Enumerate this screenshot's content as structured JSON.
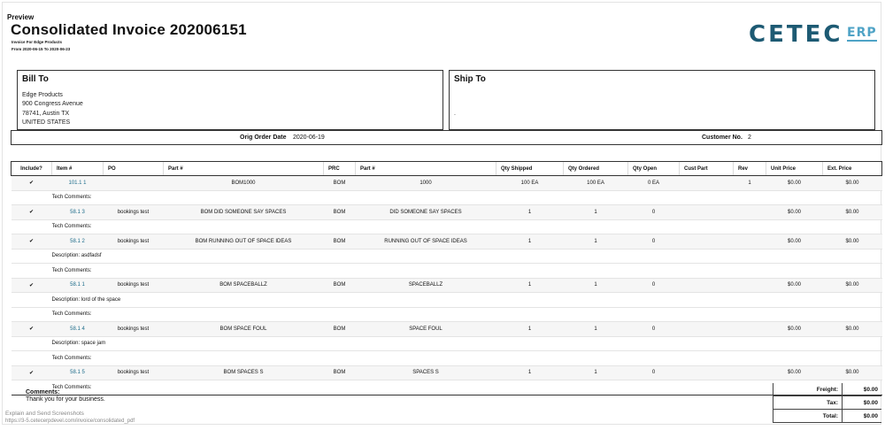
{
  "preview_label": "Preview",
  "title": "Consolidated Invoice 202006151",
  "subtitle": "Invoice For Edge Products",
  "date_range": "From 2020-06-15 To 2020-06-23",
  "logo": {
    "main": "CETEC",
    "suffix": "ERP",
    "main_color": "#1d5a73",
    "suffix_color": "#4fa3c6"
  },
  "bill_to": {
    "heading": "Bill To",
    "lines": [
      "Edge Products",
      "900 Congress Avenue",
      "78741, Austin TX",
      "UNITED STATES"
    ]
  },
  "ship_to": {
    "heading": "Ship To",
    "line": "."
  },
  "order_bar": {
    "orig_order_date_label": "Orig Order Date",
    "orig_order_date": "2020-06-19",
    "customer_no_label": "Customer No.",
    "customer_no": "2"
  },
  "columns": [
    "Include?",
    "Item #",
    "PO",
    "Part #",
    "PRC",
    "Part #",
    "Qty Shipped",
    "Qty Ordered",
    "Qty Open",
    "Cust Part",
    "Rev",
    "Unit Price",
    "Ext. Price"
  ],
  "rows": [
    {
      "kind": "item",
      "check": "✔",
      "item": "101.1 1",
      "po": "",
      "part": "BOM1000",
      "prc": "BOM",
      "part2": "1000",
      "shipped": "100 EA",
      "ordered": "100 EA",
      "open": "0 EA",
      "cust_part": "",
      "rev": "1",
      "unit": "$0.00",
      "ext": "$0.00"
    },
    {
      "kind": "note",
      "text": "Tech Comments:"
    },
    {
      "kind": "item",
      "check": "✔",
      "item": "58.1 3",
      "po": "bookings test",
      "part": "BOM DID SOMEONE SAY SPACES",
      "prc": "BOM",
      "part2": "DID SOMEONE SAY SPACES",
      "shipped": "1",
      "ordered": "1",
      "open": "0",
      "cust_part": "",
      "rev": "",
      "unit": "$0.00",
      "ext": "$0.00"
    },
    {
      "kind": "note",
      "text": "Tech Comments:"
    },
    {
      "kind": "item",
      "check": "✔",
      "item": "58.1 2",
      "po": "bookings test",
      "part": "BOM RUNNING OUT OF SPACE IDEAS",
      "prc": "BOM",
      "part2": "RUNNING OUT OF SPACE IDEAS",
      "shipped": "1",
      "ordered": "1",
      "open": "0",
      "cust_part": "",
      "rev": "",
      "unit": "$0.00",
      "ext": "$0.00"
    },
    {
      "kind": "note",
      "text": "Description: asdfadsf"
    },
    {
      "kind": "note",
      "text": "Tech Comments:"
    },
    {
      "kind": "item",
      "check": "✔",
      "item": "58.1 1",
      "po": "bookings test",
      "part": "BOM SPACEBALLZ",
      "prc": "BOM",
      "part2": "SPACEBALLZ",
      "shipped": "1",
      "ordered": "1",
      "open": "0",
      "cust_part": "",
      "rev": "",
      "unit": "$0.00",
      "ext": "$0.00"
    },
    {
      "kind": "note",
      "text": "Description: lord of the space"
    },
    {
      "kind": "note",
      "text": "Tech Comments:"
    },
    {
      "kind": "item",
      "check": "✔",
      "item": "58.1 4",
      "po": "bookings test",
      "part": "BOM SPACE FOUL",
      "prc": "BOM",
      "part2": "SPACE FOUL",
      "shipped": "1",
      "ordered": "1",
      "open": "0",
      "cust_part": "",
      "rev": "",
      "unit": "$0.00",
      "ext": "$0.00"
    },
    {
      "kind": "note",
      "text": "Description: space jam"
    },
    {
      "kind": "note",
      "text": "Tech Comments:"
    },
    {
      "kind": "item",
      "check": "✔",
      "item": "58.1 5",
      "po": "bookings test",
      "part": "BOM SPACES S",
      "prc": "BOM",
      "part2": "SPACES S",
      "shipped": "1",
      "ordered": "1",
      "open": "0",
      "cust_part": "",
      "rev": "",
      "unit": "$0.00",
      "ext": "$0.00"
    },
    {
      "kind": "note",
      "text": "Tech Comments:"
    }
  ],
  "comments": {
    "label": "Comments:",
    "text": "Thank you for your business."
  },
  "totals": [
    {
      "label": "Freight:",
      "value": "$0.00"
    },
    {
      "label": "Tax:",
      "value": "$0.00"
    },
    {
      "label": "Total:",
      "value": "$0.00"
    }
  ],
  "footer": {
    "line1": "Explain and Send Screenshots",
    "line2": "https://3-5.cetecerpdevel.com/invoice/consolidated_pdf"
  }
}
